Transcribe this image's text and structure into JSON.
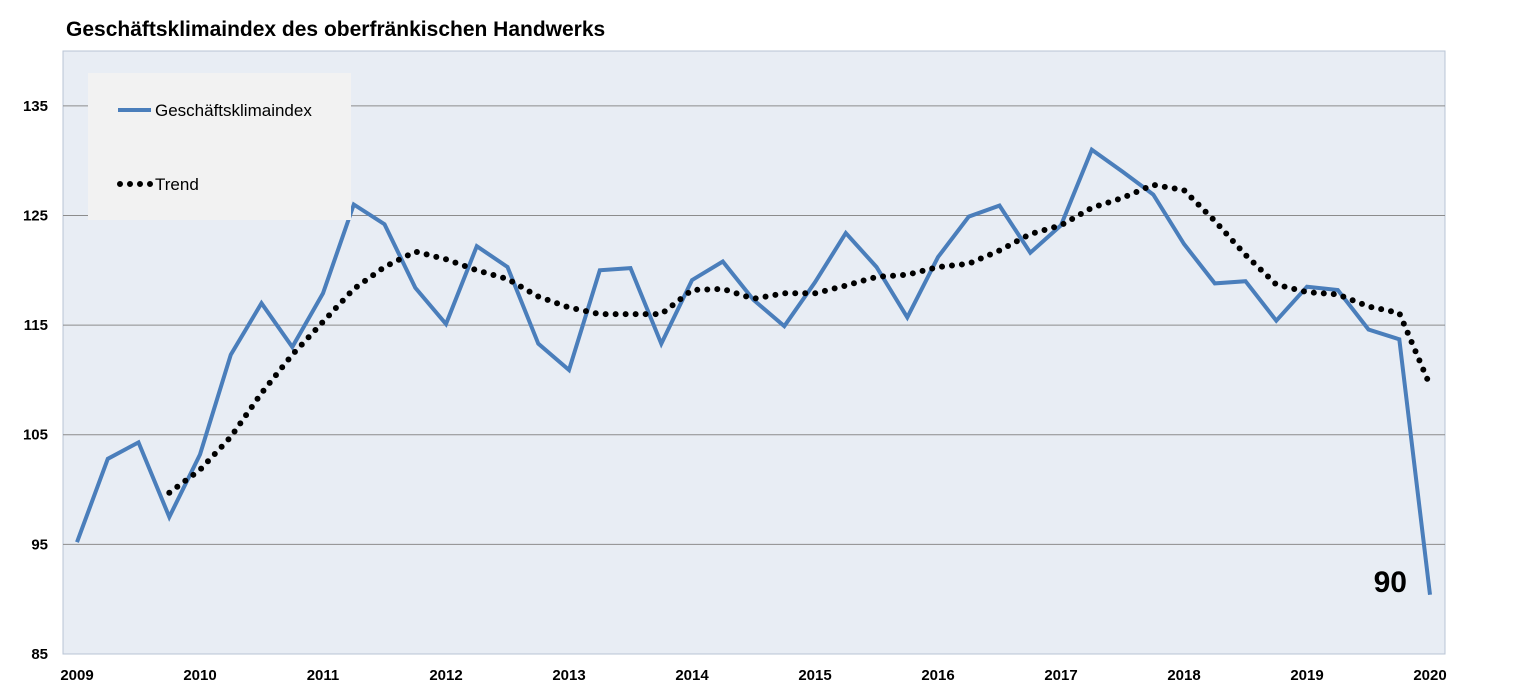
{
  "chart_data": {
    "type": "line",
    "title": "Geschäftsklimaindex des oberfränkischen Handwerks",
    "xlabel": "",
    "ylabel": "",
    "ylim": [
      85,
      140
    ],
    "yticks": [
      85,
      95,
      105,
      115,
      125,
      135
    ],
    "xticks": [
      "2009",
      "2010",
      "2011",
      "2012",
      "2013",
      "2014",
      "2015",
      "2016",
      "2017",
      "2018",
      "2019",
      "2020"
    ],
    "grid": "horizontal",
    "legend_position": "top-left",
    "background": "#e8edf4",
    "series": [
      {
        "name": "Geschäftsklimaindex",
        "color": "#4a7ebb",
        "style": "solid",
        "x": [
          2009.0,
          2009.25,
          2009.5,
          2009.75,
          2010.0,
          2010.25,
          2010.5,
          2010.75,
          2011.0,
          2011.25,
          2011.5,
          2011.75,
          2012.0,
          2012.25,
          2012.5,
          2012.75,
          2013.0,
          2013.25,
          2013.5,
          2013.75,
          2014.0,
          2014.25,
          2014.5,
          2014.75,
          2015.0,
          2015.25,
          2015.5,
          2015.75,
          2016.0,
          2016.25,
          2016.5,
          2016.75,
          2017.0,
          2017.25,
          2017.5,
          2017.75,
          2018.0,
          2018.25,
          2018.5,
          2018.75,
          2019.0,
          2019.25,
          2019.5,
          2019.75,
          2020.0
        ],
        "values": [
          95.2,
          102.8,
          104.3,
          97.5,
          103.2,
          112.3,
          117.0,
          113.0,
          117.9,
          126.0,
          124.2,
          118.4,
          115.1,
          122.2,
          120.3,
          113.3,
          110.9,
          120.0,
          120.2,
          113.3,
          119.1,
          120.8,
          117.3,
          114.9,
          118.9,
          123.4,
          120.3,
          115.7,
          121.2,
          124.9,
          125.9,
          121.6,
          124.1,
          131.0,
          129.0,
          126.9,
          122.4,
          118.8,
          119.0,
          115.4,
          118.5,
          118.2,
          114.6,
          113.7,
          90.4
        ]
      },
      {
        "name": "Trend",
        "color": "#000000",
        "style": "dotted",
        "x": [
          2009.75,
          2010.0,
          2010.25,
          2010.5,
          2010.75,
          2011.0,
          2011.25,
          2011.5,
          2011.75,
          2012.0,
          2012.25,
          2012.5,
          2012.75,
          2013.0,
          2013.25,
          2013.5,
          2013.75,
          2014.0,
          2014.25,
          2014.5,
          2014.75,
          2015.0,
          2015.25,
          2015.5,
          2015.75,
          2016.0,
          2016.25,
          2016.5,
          2016.75,
          2017.0,
          2017.25,
          2017.5,
          2017.75,
          2018.0,
          2018.25,
          2018.5,
          2018.75,
          2019.0,
          2019.25,
          2019.5,
          2019.75,
          2020.0
        ],
        "values": [
          99.7,
          101.8,
          104.8,
          108.8,
          112.3,
          115.3,
          118.3,
          120.3,
          121.7,
          121.0,
          120.0,
          119.2,
          117.6,
          116.6,
          116.0,
          116.0,
          116.0,
          118.2,
          118.3,
          117.4,
          117.9,
          117.9,
          118.6,
          119.4,
          119.6,
          120.3,
          120.6,
          121.8,
          123.3,
          124.1,
          125.7,
          126.6,
          127.8,
          127.3,
          124.5,
          121.4,
          118.7,
          118.0,
          117.8,
          116.7,
          116.1,
          109.5
        ]
      }
    ],
    "annotations": [
      {
        "text": "90",
        "x": 2020.0,
        "y": 90.4
      }
    ]
  }
}
